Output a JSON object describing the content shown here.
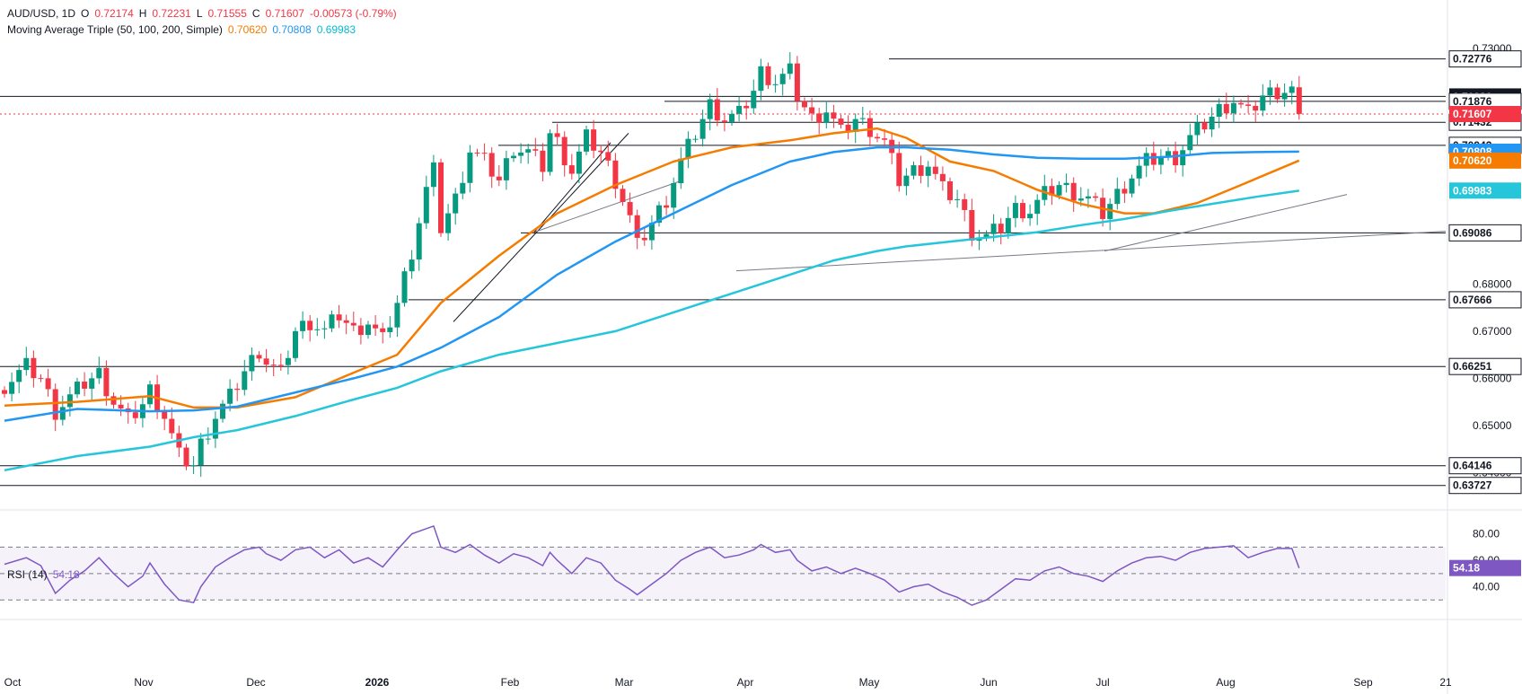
{
  "header": {
    "symbol": "AUD/USD, 1D",
    "open_label": "O",
    "open": "0.72174",
    "high_label": "H",
    "high": "0.72231",
    "low_label": "L",
    "low": "0.71555",
    "close_label": "C",
    "close": "0.71607",
    "change": "-0.00573 (-0.79%)",
    "ma_title": "Moving Average Triple (50, 100, 200, Simple)",
    "ma50": "0.70620",
    "ma100": "0.70808",
    "ma200": "0.69983",
    "rsi_title": "RSI (14)",
    "rsi_value": "54.18"
  },
  "colors": {
    "up": "#089981",
    "down": "#f23645",
    "ma50": "#f57c00",
    "ma100": "#2196f3",
    "ma200": "#26c6da",
    "rsi": "#7e57c2",
    "level": "#131722",
    "badge_dark": "#131722"
  },
  "chart_data": [
    {
      "type": "candlestick",
      "title": "AUD/USD, 1D",
      "x_labels": [
        "Oct",
        "Nov",
        "Dec",
        "2026",
        "Feb",
        "Mar",
        "Apr",
        "May",
        "Jun",
        "Jul",
        "Aug",
        "Sep",
        "21"
      ],
      "y_ticks": [
        "0.73000",
        "0.72000",
        "0.71000",
        "0.70000",
        "0.69000",
        "0.68000",
        "0.67000",
        "0.66000",
        "0.65000",
        "0.64000"
      ],
      "ylim": [
        0.6355,
        0.7315
      ],
      "horizontal_levels": [
        "0.72776",
        "0.71980",
        "0.71876",
        "0.71432",
        "0.70943",
        "0.69086",
        "0.67666",
        "0.66251",
        "0.64146",
        "0.63727"
      ],
      "last_price": "0.71607",
      "ma_badges": [
        {
          "name": "MA100",
          "value": "0.70808",
          "color": "#2196f3"
        },
        {
          "name": "MA50",
          "value": "0.70620",
          "color": "#f57c00"
        },
        {
          "name": "MA200",
          "value": "0.69983",
          "color": "#26c6da"
        }
      ],
      "close_path": [
        [
          0,
          0.6585
        ],
        [
          3,
          0.6625
        ],
        [
          5,
          0.66
        ],
        [
          7,
          0.653
        ],
        [
          9,
          0.656
        ],
        [
          11,
          0.659
        ],
        [
          13,
          0.661
        ],
        [
          15,
          0.655
        ],
        [
          17,
          0.651
        ],
        [
          19,
          0.6545
        ],
        [
          20,
          0.6575
        ],
        [
          22,
          0.652
        ],
        [
          24,
          0.6435
        ],
        [
          26,
          0.6415
        ],
        [
          27,
          0.646
        ],
        [
          29,
          0.652
        ],
        [
          31,
          0.656
        ],
        [
          33,
          0.6615
        ],
        [
          35,
          0.666
        ],
        [
          36,
          0.6635
        ],
        [
          38,
          0.661
        ],
        [
          40,
          0.67
        ],
        [
          42,
          0.672
        ],
        [
          44,
          0.67
        ],
        [
          46,
          0.6735
        ],
        [
          48,
          0.67
        ],
        [
          50,
          0.672
        ],
        [
          52,
          0.668
        ],
        [
          54,
          0.676
        ],
        [
          56,
          0.687
        ],
        [
          58,
          0.7
        ],
        [
          59,
          0.704
        ],
        [
          60,
          0.692
        ],
        [
          62,
          0.698
        ],
        [
          64,
          0.7085
        ],
        [
          66,
          0.706
        ],
        [
          68,
          0.702
        ],
        [
          70,
          0.709
        ],
        [
          72,
          0.708
        ],
        [
          74,
          0.705
        ],
        [
          75,
          0.712
        ],
        [
          76,
          0.71
        ],
        [
          78,
          0.704
        ],
        [
          80,
          0.711
        ],
        [
          82,
          0.708
        ],
        [
          84,
          0.702
        ],
        [
          86,
          0.694
        ],
        [
          87,
          0.688
        ],
        [
          89,
          0.693
        ],
        [
          91,
          0.698
        ],
        [
          93,
          0.706
        ],
        [
          95,
          0.712
        ],
        [
          97,
          0.718
        ],
        [
          99,
          0.715
        ],
        [
          101,
          0.716
        ],
        [
          103,
          0.721
        ],
        [
          104,
          0.725
        ],
        [
          106,
          0.723
        ],
        [
          108,
          0.725
        ],
        [
          109,
          0.72
        ],
        [
          111,
          0.715
        ],
        [
          113,
          0.717
        ],
        [
          115,
          0.712
        ],
        [
          117,
          0.715
        ],
        [
          119,
          0.713
        ],
        [
          121,
          0.71
        ],
        [
          123,
          0.702
        ],
        [
          125,
          0.704
        ],
        [
          127,
          0.7055
        ],
        [
          129,
          0.7
        ],
        [
          131,
          0.698
        ],
        [
          133,
          0.691
        ],
        [
          135,
          0.69
        ],
        [
          137,
          0.692
        ],
        [
          139,
          0.696
        ],
        [
          141,
          0.6955
        ],
        [
          143,
          0.699
        ],
        [
          145,
          0.701
        ],
        [
          147,
          0.6995
        ],
        [
          149,
          0.698
        ],
        [
          151,
          0.695
        ],
        [
          153,
          0.699
        ],
        [
          155,
          0.703
        ],
        [
          157,
          0.706
        ],
        [
          159,
          0.707
        ],
        [
          161,
          0.707
        ],
        [
          163,
          0.711
        ],
        [
          165,
          0.714
        ],
        [
          167,
          0.717
        ],
        [
          169,
          0.719
        ],
        [
          171,
          0.716
        ],
        [
          173,
          0.72
        ],
        [
          175,
          0.721
        ],
        [
          177,
          0.7213
        ],
        [
          178,
          0.7161
        ]
      ],
      "series": [
        {
          "name": "MA50",
          "values": [
            [
              0,
              0.6542
            ],
            [
              10,
              0.655
            ],
            [
              20,
              0.6562
            ],
            [
              26,
              0.6538
            ],
            [
              32,
              0.6538
            ],
            [
              40,
              0.656
            ],
            [
              48,
              0.6612
            ],
            [
              54,
              0.665
            ],
            [
              60,
              0.676
            ],
            [
              68,
              0.686
            ],
            [
              76,
              0.695
            ],
            [
              84,
              0.701
            ],
            [
              92,
              0.706
            ],
            [
              100,
              0.709
            ],
            [
              108,
              0.7105
            ],
            [
              114,
              0.712
            ],
            [
              120,
              0.713
            ],
            [
              124,
              0.711
            ],
            [
              130,
              0.706
            ],
            [
              136,
              0.704
            ],
            [
              142,
              0.7
            ],
            [
              148,
              0.697
            ],
            [
              154,
              0.695
            ],
            [
              158,
              0.695
            ],
            [
              164,
              0.6972
            ],
            [
              170,
              0.701
            ],
            [
              178,
              0.7062
            ]
          ]
        },
        {
          "name": "MA100",
          "values": [
            [
              0,
              0.651
            ],
            [
              10,
              0.6535
            ],
            [
              20,
              0.653
            ],
            [
              26,
              0.6532
            ],
            [
              32,
              0.654
            ],
            [
              40,
              0.657
            ],
            [
              48,
              0.66
            ],
            [
              54,
              0.6625
            ],
            [
              60,
              0.6665
            ],
            [
              68,
              0.673
            ],
            [
              76,
              0.682
            ],
            [
              84,
              0.689
            ],
            [
              92,
              0.695
            ],
            [
              100,
              0.701
            ],
            [
              108,
              0.706
            ],
            [
              114,
              0.708
            ],
            [
              120,
              0.709
            ],
            [
              124,
              0.709
            ],
            [
              130,
              0.7085
            ],
            [
              136,
              0.7075
            ],
            [
              142,
              0.7068
            ],
            [
              148,
              0.7066
            ],
            [
              154,
              0.7066
            ],
            [
              160,
              0.707
            ],
            [
              166,
              0.7078
            ],
            [
              172,
              0.708
            ],
            [
              178,
              0.7081
            ]
          ]
        },
        {
          "name": "MA200",
          "values": [
            [
              0,
              0.6405
            ],
            [
              10,
              0.6435
            ],
            [
              20,
              0.6455
            ],
            [
              26,
              0.6475
            ],
            [
              32,
              0.649
            ],
            [
              40,
              0.652
            ],
            [
              48,
              0.6555
            ],
            [
              54,
              0.658
            ],
            [
              60,
              0.6615
            ],
            [
              68,
              0.665
            ],
            [
              76,
              0.6675
            ],
            [
              84,
              0.67
            ],
            [
              92,
              0.674
            ],
            [
              100,
              0.678
            ],
            [
              108,
              0.682
            ],
            [
              114,
              0.685
            ],
            [
              120,
              0.687
            ],
            [
              124,
              0.688
            ],
            [
              130,
              0.689
            ],
            [
              136,
              0.69
            ],
            [
              142,
              0.691
            ],
            [
              148,
              0.6925
            ],
            [
              154,
              0.6938
            ],
            [
              160,
              0.6955
            ],
            [
              166,
              0.697
            ],
            [
              172,
              0.6985
            ],
            [
              178,
              0.6998
            ]
          ]
        }
      ]
    },
    {
      "type": "line",
      "title": "RSI (14)",
      "y_ticks": [
        "80.00",
        "60.00",
        "40.00"
      ],
      "ylim": [
        22,
        90
      ],
      "bands": [
        70,
        50,
        30
      ],
      "last_value": "54.18",
      "series": [
        {
          "name": "RSI",
          "values": [
            [
              0,
              57
            ],
            [
              3,
              62
            ],
            [
              5,
              56
            ],
            [
              7,
              35
            ],
            [
              9,
              45
            ],
            [
              11,
              52
            ],
            [
              13,
              62
            ],
            [
              15,
              50
            ],
            [
              17,
              40
            ],
            [
              19,
              48
            ],
            [
              20,
              58
            ],
            [
              22,
              42
            ],
            [
              24,
              30
            ],
            [
              26,
              28
            ],
            [
              27,
              40
            ],
            [
              29,
              55
            ],
            [
              31,
              62
            ],
            [
              33,
              68
            ],
            [
              35,
              70
            ],
            [
              36,
              65
            ],
            [
              38,
              60
            ],
            [
              40,
              68
            ],
            [
              42,
              70
            ],
            [
              44,
              62
            ],
            [
              46,
              68
            ],
            [
              48,
              58
            ],
            [
              50,
              62
            ],
            [
              52,
              55
            ],
            [
              54,
              68
            ],
            [
              56,
              80
            ],
            [
              58,
              84
            ],
            [
              59,
              86
            ],
            [
              60,
              70
            ],
            [
              62,
              66
            ],
            [
              64,
              72
            ],
            [
              66,
              64
            ],
            [
              68,
              58
            ],
            [
              70,
              65
            ],
            [
              72,
              62
            ],
            [
              74,
              56
            ],
            [
              75,
              66
            ],
            [
              76,
              60
            ],
            [
              78,
              50
            ],
            [
              80,
              62
            ],
            [
              82,
              58
            ],
            [
              84,
              45
            ],
            [
              86,
              38
            ],
            [
              87,
              34
            ],
            [
              89,
              42
            ],
            [
              91,
              50
            ],
            [
              93,
              60
            ],
            [
              95,
              66
            ],
            [
              97,
              70
            ],
            [
              99,
              62
            ],
            [
              101,
              64
            ],
            [
              103,
              68
            ],
            [
              104,
              72
            ],
            [
              106,
              66
            ],
            [
              108,
              68
            ],
            [
              109,
              60
            ],
            [
              111,
              52
            ],
            [
              113,
              55
            ],
            [
              115,
              50
            ],
            [
              117,
              54
            ],
            [
              119,
              50
            ],
            [
              121,
              45
            ],
            [
              123,
              36
            ],
            [
              125,
              40
            ],
            [
              127,
              42
            ],
            [
              129,
              36
            ],
            [
              131,
              32
            ],
            [
              133,
              26
            ],
            [
              135,
              30
            ],
            [
              137,
              38
            ],
            [
              139,
              46
            ],
            [
              141,
              45
            ],
            [
              143,
              52
            ],
            [
              145,
              55
            ],
            [
              147,
              50
            ],
            [
              149,
              48
            ],
            [
              151,
              44
            ],
            [
              153,
              52
            ],
            [
              155,
              58
            ],
            [
              157,
              62
            ],
            [
              159,
              63
            ],
            [
              161,
              60
            ],
            [
              163,
              66
            ],
            [
              165,
              69
            ],
            [
              167,
              70
            ],
            [
              169,
              71
            ],
            [
              171,
              62
            ],
            [
              173,
              66
            ],
            [
              175,
              69
            ],
            [
              177,
              69
            ],
            [
              178,
              54.18
            ]
          ]
        }
      ]
    }
  ]
}
